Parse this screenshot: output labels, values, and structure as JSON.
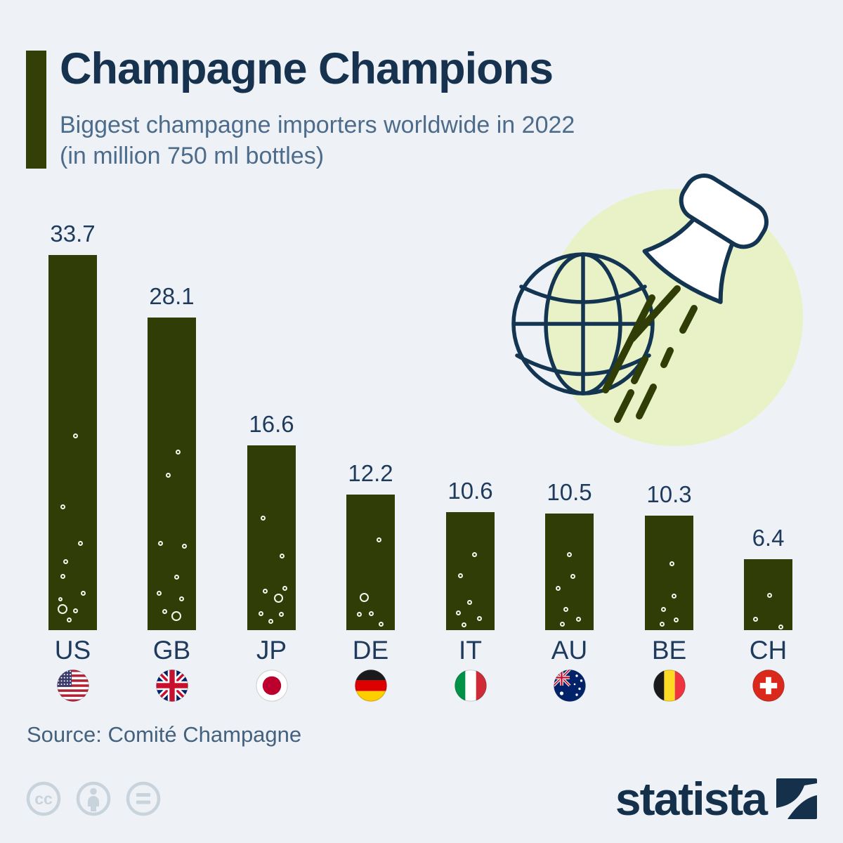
{
  "header": {
    "title": "Champagne Champions",
    "subtitle_line1": "Biggest champagne importers worldwide in 2022",
    "subtitle_line2": "(in million 750 ml bottles)"
  },
  "chart_data": {
    "type": "bar",
    "title": "Champagne Champions",
    "subtitle": "Biggest champagne importers worldwide in 2022 (in million 750 ml bottles)",
    "unit": "million 750 ml bottles",
    "categories": [
      "US",
      "GB",
      "JP",
      "DE",
      "IT",
      "AU",
      "BE",
      "CH"
    ],
    "values": [
      33.7,
      28.1,
      16.6,
      12.2,
      10.6,
      10.5,
      10.3,
      6.4
    ],
    "value_labels": [
      "33.7",
      "28.1",
      "16.6",
      "12.2",
      "10.6",
      "10.5",
      "10.3",
      "6.4"
    ],
    "flag_icons": [
      "us-flag-icon",
      "gb-flag-icon",
      "jp-flag-icon",
      "de-flag-icon",
      "it-flag-icon",
      "au-flag-icon",
      "be-flag-icon",
      "ch-flag-icon"
    ],
    "bar_color": "#313d06",
    "bubble_color": "#f3f6ec",
    "label_color": "#1e3a5c",
    "grid": false,
    "legend": false,
    "ylim": [
      0,
      35
    ]
  },
  "illustration": {
    "name": "champagne-cork-globe-illustration",
    "circle_color": "#e9f1c6",
    "outline_color": "#143552",
    "streak_color": "#313d06"
  },
  "footer": {
    "source": "Source: Comité Champagne",
    "license_icons": [
      "creative-commons-icon",
      "attribution-person-icon",
      "no-derivatives-icon"
    ],
    "brand": "statista"
  }
}
